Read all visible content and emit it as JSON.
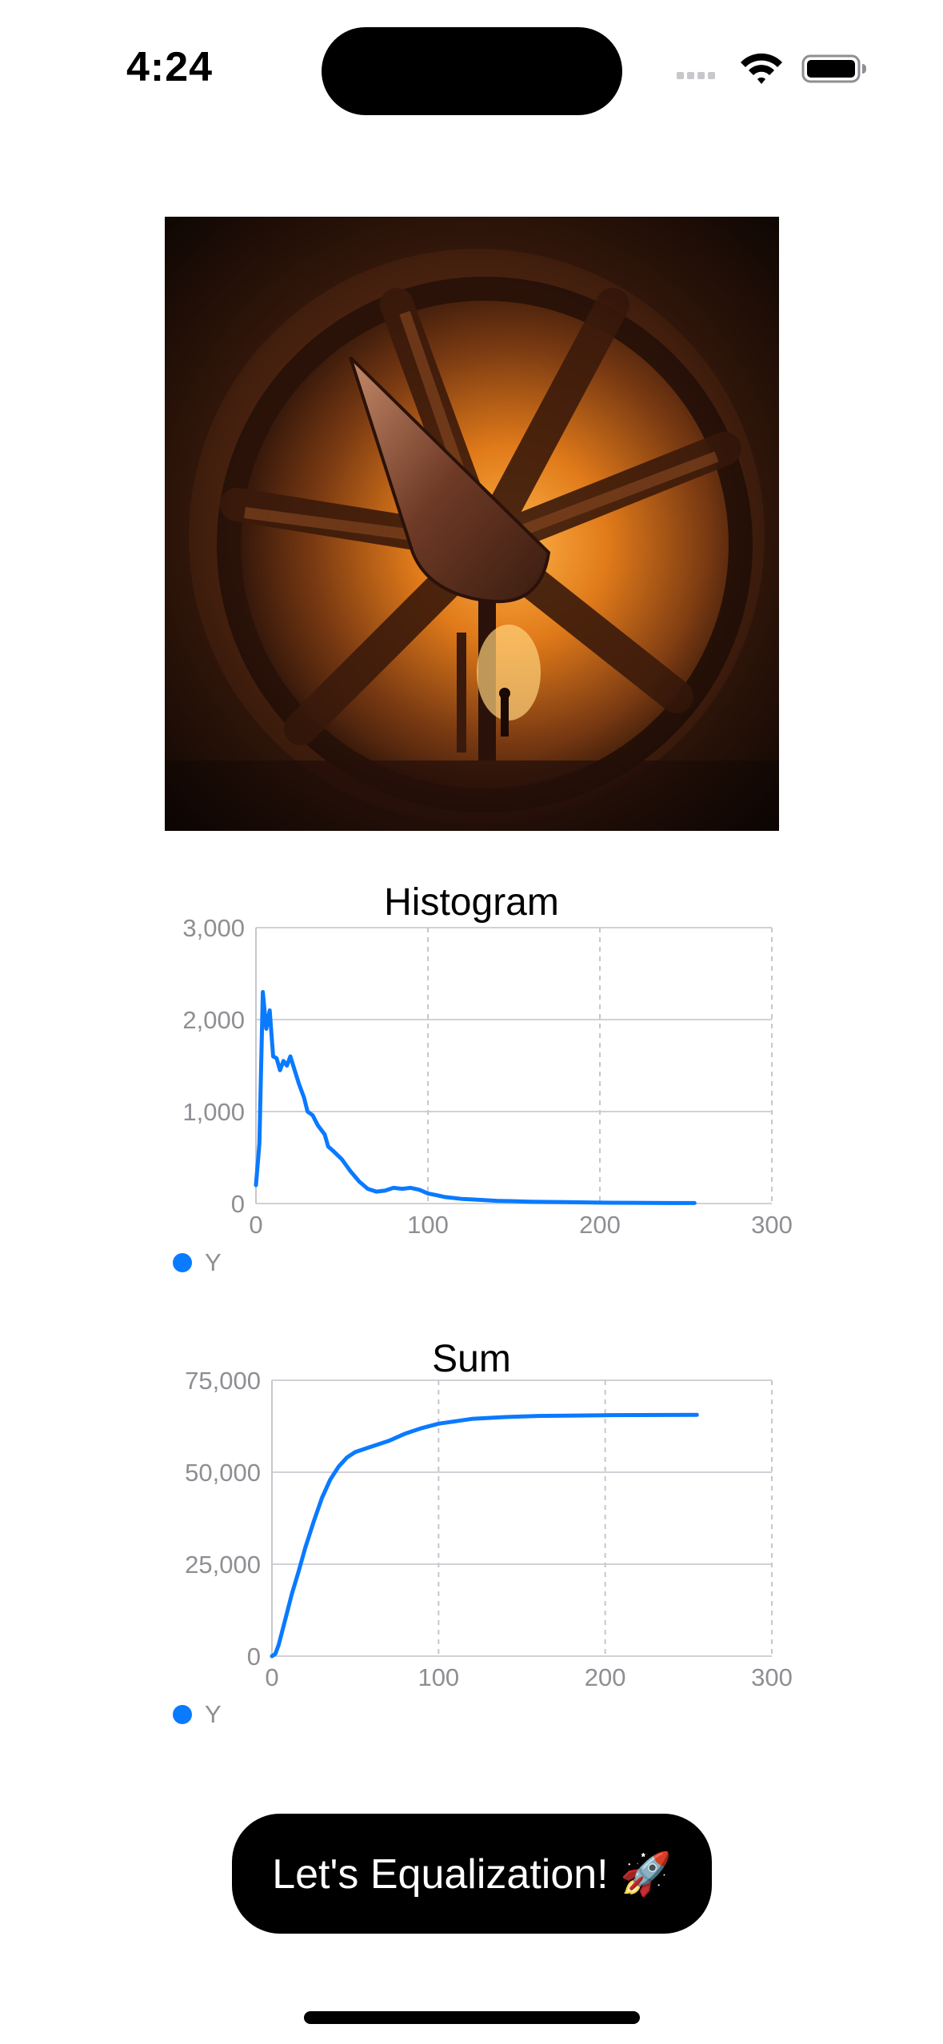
{
  "status_bar": {
    "time": "4:24",
    "icons": [
      "cellular-dots-icon",
      "wifi-icon",
      "battery-icon"
    ]
  },
  "photo": {
    "subject": "wind-tunnel-photo"
  },
  "charts": [
    {
      "id": "histogram",
      "title": "Histogram",
      "legend": "Y",
      "color": "#0a7aff",
      "chart_data": {
        "type": "line",
        "title": "Histogram",
        "xlim": [
          0,
          300
        ],
        "ylim": [
          0,
          3000
        ],
        "x_ticks": [
          0,
          100,
          200,
          300
        ],
        "y_ticks": [
          0,
          1000,
          2000,
          3000
        ],
        "x_tick_labels": [
          "0",
          "100",
          "200",
          "300"
        ],
        "y_tick_labels": [
          "0",
          "1,000",
          "2,000",
          "3,000"
        ],
        "grid": true,
        "legend_position": "bottom-left",
        "series": [
          {
            "name": "Y",
            "points": [
              [
                0,
                200
              ],
              [
                2,
                650
              ],
              [
                4,
                2300
              ],
              [
                6,
                1900
              ],
              [
                8,
                2100
              ],
              [
                10,
                1600
              ],
              [
                12,
                1580
              ],
              [
                14,
                1450
              ],
              [
                16,
                1550
              ],
              [
                18,
                1500
              ],
              [
                20,
                1600
              ],
              [
                22,
                1480
              ],
              [
                25,
                1300
              ],
              [
                28,
                1150
              ],
              [
                30,
                1000
              ],
              [
                33,
                960
              ],
              [
                36,
                850
              ],
              [
                40,
                750
              ],
              [
                42,
                620
              ],
              [
                45,
                570
              ],
              [
                50,
                480
              ],
              [
                55,
                350
              ],
              [
                60,
                240
              ],
              [
                65,
                160
              ],
              [
                70,
                130
              ],
              [
                75,
                140
              ],
              [
                80,
                170
              ],
              [
                85,
                160
              ],
              [
                90,
                170
              ],
              [
                95,
                150
              ],
              [
                100,
                110
              ],
              [
                105,
                90
              ],
              [
                110,
                70
              ],
              [
                120,
                50
              ],
              [
                130,
                40
              ],
              [
                140,
                30
              ],
              [
                150,
                25
              ],
              [
                160,
                20
              ],
              [
                180,
                15
              ],
              [
                200,
                10
              ],
              [
                220,
                8
              ],
              [
                240,
                5
              ],
              [
                255,
                5
              ]
            ]
          }
        ]
      }
    },
    {
      "id": "sum",
      "title": "Sum",
      "legend": "Y",
      "color": "#0a7aff",
      "chart_data": {
        "type": "line",
        "title": "Sum",
        "xlim": [
          0,
          300
        ],
        "ylim": [
          0,
          75000
        ],
        "x_ticks": [
          0,
          100,
          200,
          300
        ],
        "y_ticks": [
          0,
          25000,
          50000,
          75000
        ],
        "x_tick_labels": [
          "0",
          "100",
          "200",
          "300"
        ],
        "y_tick_labels": [
          "0",
          "25,000",
          "50,000",
          "75,000"
        ],
        "grid": true,
        "legend_position": "bottom-left",
        "series": [
          {
            "name": "Y",
            "points": [
              [
                0,
                0
              ],
              [
                2,
                600
              ],
              [
                4,
                3000
              ],
              [
                8,
                10000
              ],
              [
                12,
                17000
              ],
              [
                16,
                23000
              ],
              [
                20,
                29500
              ],
              [
                25,
                36500
              ],
              [
                30,
                43000
              ],
              [
                35,
                48000
              ],
              [
                40,
                51500
              ],
              [
                45,
                54000
              ],
              [
                50,
                55500
              ],
              [
                60,
                57000
              ],
              [
                70,
                58500
              ],
              [
                80,
                60500
              ],
              [
                90,
                62000
              ],
              [
                100,
                63200
              ],
              [
                120,
                64500
              ],
              [
                140,
                65000
              ],
              [
                160,
                65300
              ],
              [
                200,
                65500
              ],
              [
                255,
                65600
              ]
            ]
          }
        ]
      }
    }
  ],
  "action_button": {
    "label": "Let's Equalization! 🚀"
  }
}
